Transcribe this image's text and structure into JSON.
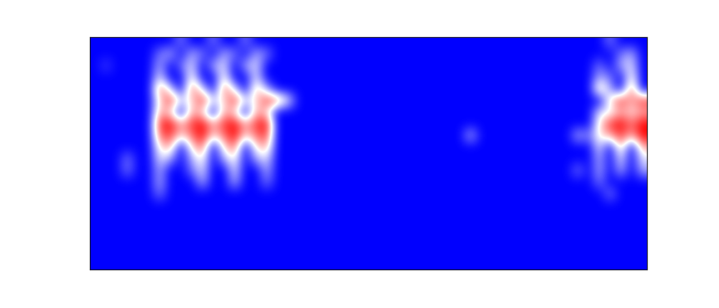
{
  "chart_data": {
    "type": "heatmap",
    "tick_labels": false,
    "zlim": [
      0,
      9
    ],
    "cells": [
      [
        0,
        0,
        0,
        0,
        0,
        0,
        0,
        0,
        2,
        0,
        0,
        2,
        0,
        0,
        2,
        0,
        0,
        0,
        0,
        0,
        0,
        0,
        0,
        0,
        0,
        0,
        0,
        0,
        0,
        0,
        0,
        0,
        0,
        0,
        0,
        0,
        0,
        0,
        0,
        0,
        0,
        0,
        0,
        0,
        0,
        0,
        0,
        0,
        2,
        0,
        0,
        0
      ],
      [
        0,
        0,
        0,
        0,
        0,
        0,
        2,
        3,
        0,
        3,
        2,
        0,
        3,
        2,
        0,
        3,
        2,
        0,
        0,
        0,
        0,
        0,
        0,
        0,
        0,
        0,
        0,
        0,
        0,
        0,
        0,
        0,
        0,
        0,
        0,
        0,
        0,
        0,
        0,
        0,
        0,
        0,
        0,
        0,
        0,
        0,
        0,
        0,
        0,
        2,
        3,
        0
      ],
      [
        0,
        1,
        0,
        0,
        0,
        0,
        3,
        0,
        2,
        4,
        0,
        3,
        4,
        0,
        3,
        4,
        0,
        0,
        0,
        0,
        0,
        0,
        0,
        0,
        0,
        0,
        0,
        0,
        0,
        0,
        0,
        0,
        0,
        0,
        0,
        0,
        0,
        0,
        0,
        0,
        0,
        0,
        0,
        0,
        0,
        0,
        0,
        2,
        0,
        3,
        4,
        0
      ],
      [
        0,
        0,
        0,
        0,
        0,
        0,
        4,
        0,
        0,
        5,
        0,
        0,
        5,
        0,
        0,
        4,
        0,
        0,
        0,
        0,
        0,
        0,
        0,
        0,
        0,
        0,
        0,
        0,
        0,
        0,
        0,
        0,
        0,
        0,
        0,
        0,
        0,
        0,
        0,
        0,
        0,
        0,
        0,
        0,
        0,
        0,
        0,
        3,
        2,
        0,
        5,
        0
      ],
      [
        0,
        0,
        0,
        0,
        0,
        0,
        7,
        4,
        0,
        7,
        4,
        0,
        7,
        4,
        0,
        6,
        3,
        0,
        0,
        0,
        0,
        0,
        0,
        0,
        0,
        0,
        0,
        0,
        0,
        0,
        0,
        0,
        0,
        0,
        0,
        0,
        0,
        0,
        0,
        0,
        0,
        0,
        0,
        0,
        0,
        0,
        0,
        6,
        3,
        0,
        7,
        0
      ],
      [
        0,
        0,
        0,
        0,
        0,
        0,
        5,
        8,
        4,
        5,
        8,
        4,
        5,
        8,
        4,
        5,
        8,
        7,
        4,
        0,
        0,
        0,
        0,
        0,
        0,
        0,
        0,
        0,
        0,
        0,
        0,
        0,
        0,
        0,
        0,
        0,
        0,
        0,
        0,
        0,
        0,
        0,
        0,
        0,
        0,
        0,
        0,
        0,
        5,
        8,
        6,
        8
      ],
      [
        0,
        0,
        0,
        0,
        0,
        0,
        6,
        5,
        0,
        6,
        5,
        0,
        6,
        5,
        0,
        6,
        5,
        0,
        0,
        0,
        0,
        0,
        0,
        0,
        0,
        0,
        0,
        0,
        0,
        0,
        0,
        0,
        0,
        0,
        0,
        0,
        0,
        0,
        0,
        0,
        0,
        0,
        0,
        0,
        0,
        0,
        0,
        4,
        4,
        6,
        5,
        6
      ],
      [
        0,
        0,
        0,
        0,
        0,
        0,
        8,
        9,
        6,
        8,
        9,
        6,
        8,
        9,
        6,
        8,
        9,
        0,
        0,
        0,
        0,
        0,
        0,
        0,
        0,
        0,
        0,
        0,
        0,
        0,
        0,
        0,
        0,
        0,
        0,
        0,
        0,
        0,
        0,
        0,
        0,
        0,
        0,
        0,
        0,
        0,
        0,
        5,
        8,
        9,
        7,
        9
      ],
      [
        0,
        0,
        0,
        0,
        0,
        0,
        7,
        8,
        5,
        7,
        9,
        5,
        7,
        9,
        5,
        7,
        8,
        0,
        0,
        0,
        0,
        0,
        0,
        0,
        0,
        0,
        0,
        0,
        0,
        0,
        0,
        0,
        0,
        0,
        0,
        3,
        0,
        0,
        0,
        0,
        0,
        0,
        0,
        0,
        0,
        3,
        2,
        5,
        6,
        8,
        6,
        9
      ],
      [
        0,
        0,
        0,
        0,
        0,
        0,
        5,
        6,
        0,
        5,
        7,
        0,
        5,
        7,
        0,
        5,
        6,
        0,
        0,
        0,
        0,
        0,
        0,
        0,
        0,
        0,
        0,
        0,
        0,
        0,
        0,
        0,
        0,
        0,
        0,
        0,
        0,
        0,
        0,
        0,
        0,
        0,
        0,
        0,
        0,
        0,
        0,
        4,
        0,
        6,
        0,
        6
      ],
      [
        0,
        0,
        0,
        2,
        0,
        0,
        4,
        3,
        0,
        3,
        5,
        0,
        3,
        5,
        0,
        3,
        4,
        0,
        0,
        0,
        0,
        0,
        0,
        0,
        0,
        0,
        0,
        0,
        0,
        0,
        0,
        0,
        0,
        0,
        0,
        0,
        0,
        0,
        0,
        0,
        0,
        0,
        0,
        0,
        0,
        0,
        0,
        3,
        0,
        4,
        0,
        4
      ],
      [
        0,
        0,
        0,
        2,
        0,
        0,
        3,
        0,
        0,
        2,
        4,
        0,
        0,
        4,
        0,
        0,
        3,
        0,
        0,
        0,
        0,
        0,
        0,
        0,
        0,
        0,
        0,
        0,
        0,
        0,
        0,
        0,
        0,
        0,
        0,
        0,
        0,
        0,
        0,
        0,
        0,
        0,
        0,
        0,
        0,
        2,
        0,
        3,
        0,
        3,
        0,
        3
      ],
      [
        0,
        0,
        0,
        0,
        0,
        0,
        3,
        0,
        0,
        0,
        3,
        0,
        0,
        3,
        0,
        0,
        2,
        0,
        0,
        0,
        0,
        0,
        0,
        0,
        0,
        0,
        0,
        0,
        0,
        0,
        0,
        0,
        0,
        0,
        0,
        0,
        0,
        0,
        0,
        0,
        0,
        0,
        0,
        0,
        0,
        0,
        0,
        2,
        0,
        0,
        0,
        0
      ],
      [
        0,
        0,
        0,
        0,
        0,
        0,
        2,
        0,
        0,
        0,
        0,
        0,
        0,
        0,
        0,
        0,
        0,
        0,
        0,
        0,
        0,
        0,
        0,
        0,
        0,
        0,
        0,
        0,
        0,
        0,
        0,
        0,
        0,
        0,
        0,
        0,
        0,
        0,
        0,
        0,
        0,
        0,
        0,
        0,
        0,
        0,
        0,
        0,
        2,
        0,
        0,
        0
      ],
      [
        0,
        0,
        0,
        0,
        0,
        0,
        0,
        0,
        0,
        0,
        0,
        0,
        0,
        0,
        0,
        0,
        0,
        0,
        0,
        0,
        0,
        0,
        0,
        0,
        0,
        0,
        0,
        0,
        0,
        0,
        0,
        0,
        0,
        0,
        0,
        0,
        0,
        0,
        0,
        0,
        0,
        0,
        0,
        0,
        0,
        0,
        0,
        0,
        0,
        0,
        0,
        0
      ],
      [
        0,
        0,
        0,
        0,
        0,
        0,
        0,
        0,
        0,
        0,
        0,
        0,
        0,
        0,
        0,
        0,
        0,
        0,
        0,
        0,
        0,
        0,
        0,
        0,
        0,
        0,
        0,
        0,
        0,
        0,
        0,
        0,
        0,
        0,
        0,
        0,
        0,
        0,
        0,
        0,
        0,
        0,
        0,
        0,
        0,
        0,
        0,
        0,
        0,
        0,
        0,
        0
      ],
      [
        0,
        0,
        0,
        0,
        0,
        0,
        0,
        0,
        0,
        0,
        0,
        0,
        0,
        0,
        0,
        0,
        0,
        0,
        0,
        0,
        0,
        0,
        0,
        0,
        0,
        0,
        0,
        0,
        0,
        0,
        0,
        0,
        0,
        0,
        0,
        0,
        0,
        0,
        0,
        0,
        0,
        0,
        0,
        0,
        0,
        0,
        0,
        0,
        0,
        0,
        0,
        0
      ],
      [
        0,
        0,
        0,
        0,
        0,
        0,
        0,
        0,
        0,
        0,
        0,
        0,
        0,
        0,
        0,
        0,
        0,
        0,
        0,
        0,
        0,
        0,
        0,
        0,
        0,
        0,
        0,
        0,
        0,
        0,
        0,
        0,
        0,
        0,
        0,
        0,
        0,
        0,
        0,
        0,
        0,
        0,
        0,
        0,
        0,
        0,
        0,
        0,
        0,
        0,
        0,
        0
      ],
      [
        0,
        0,
        0,
        0,
        0,
        0,
        0,
        0,
        0,
        0,
        0,
        0,
        0,
        0,
        0,
        0,
        0,
        0,
        0,
        0,
        0,
        0,
        0,
        0,
        0,
        0,
        0,
        0,
        0,
        0,
        0,
        0,
        0,
        0,
        0,
        0,
        0,
        0,
        0,
        0,
        0,
        0,
        0,
        0,
        0,
        0,
        0,
        0,
        0,
        0,
        0,
        0
      ],
      [
        0,
        0,
        0,
        0,
        0,
        0,
        0,
        0,
        0,
        0,
        0,
        0,
        0,
        0,
        0,
        0,
        0,
        0,
        0,
        0,
        0,
        0,
        0,
        0,
        0,
        0,
        0,
        0,
        0,
        0,
        0,
        0,
        0,
        0,
        0,
        0,
        0,
        0,
        0,
        0,
        0,
        0,
        0,
        0,
        0,
        0,
        0,
        0,
        0,
        0,
        0,
        0
      ]
    ]
  }
}
